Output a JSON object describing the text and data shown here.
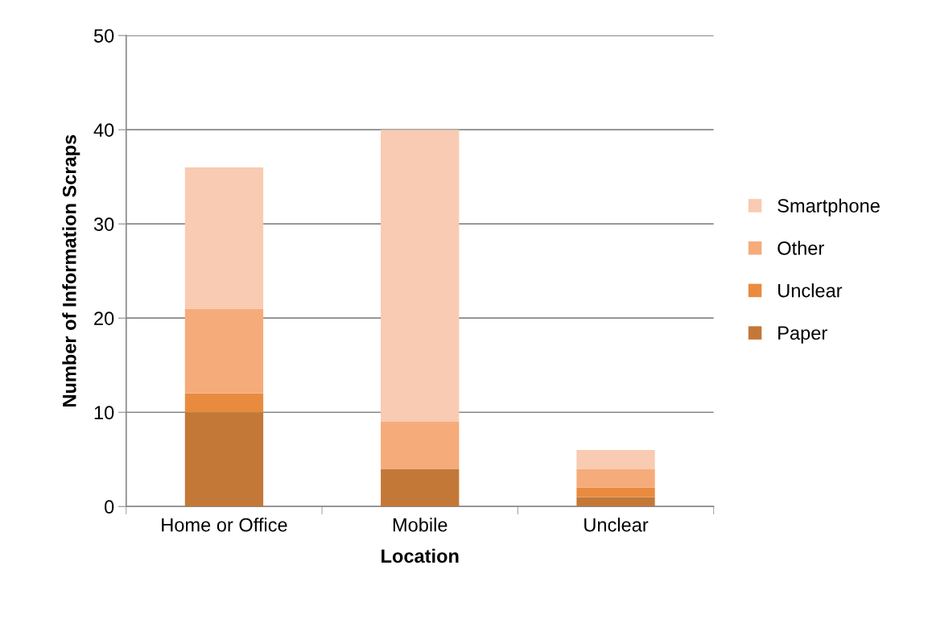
{
  "chart_data": {
    "type": "bar",
    "stacked": true,
    "xlabel": "Location",
    "ylabel": "Number of Information Scraps",
    "categories": [
      "Home or Office",
      "Mobile",
      "Unclear"
    ],
    "series": [
      {
        "name": "Paper",
        "color": "#c47838",
        "values": [
          10,
          4,
          1
        ]
      },
      {
        "name": "Unclear",
        "color": "#e98b3f",
        "values": [
          2,
          0,
          1
        ]
      },
      {
        "name": "Other",
        "color": "#f6ab7a",
        "values": [
          9,
          5,
          2
        ]
      },
      {
        "name": "Smartphone",
        "color": "#f8cbb2",
        "values": [
          15,
          31,
          2
        ]
      }
    ],
    "ylim": [
      0,
      50
    ],
    "yticks": [
      0,
      10,
      20,
      30,
      40,
      50
    ],
    "grid": "y",
    "legend": "right"
  }
}
